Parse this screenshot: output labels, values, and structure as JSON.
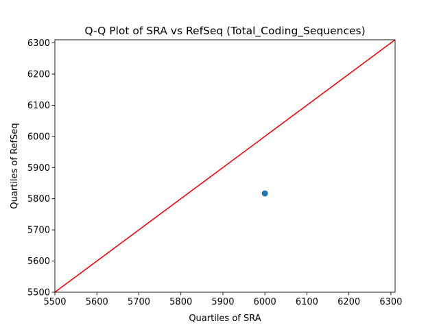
{
  "chart_data": {
    "type": "scatter",
    "title": "Q-Q Plot of SRA vs RefSeq (Total_Coding_Sequences)",
    "xlabel": "Quartiles of SRA",
    "ylabel": "Quartiles of RefSeq",
    "xlim": [
      5500,
      6310
    ],
    "ylim": [
      5500,
      6310
    ],
    "xticks": [
      5500,
      5600,
      5700,
      5800,
      5900,
      6000,
      6100,
      6200,
      6300
    ],
    "yticks": [
      5500,
      5600,
      5700,
      5800,
      5900,
      6000,
      6100,
      6200,
      6300
    ],
    "points": [
      {
        "x": 6000,
        "y": 5817
      }
    ],
    "reference_line": {
      "from": [
        5500,
        5500
      ],
      "to": [
        6310,
        6310
      ],
      "color": "#ff0000"
    },
    "point_color": "#1f77b4",
    "grid": false,
    "legend": "none"
  }
}
